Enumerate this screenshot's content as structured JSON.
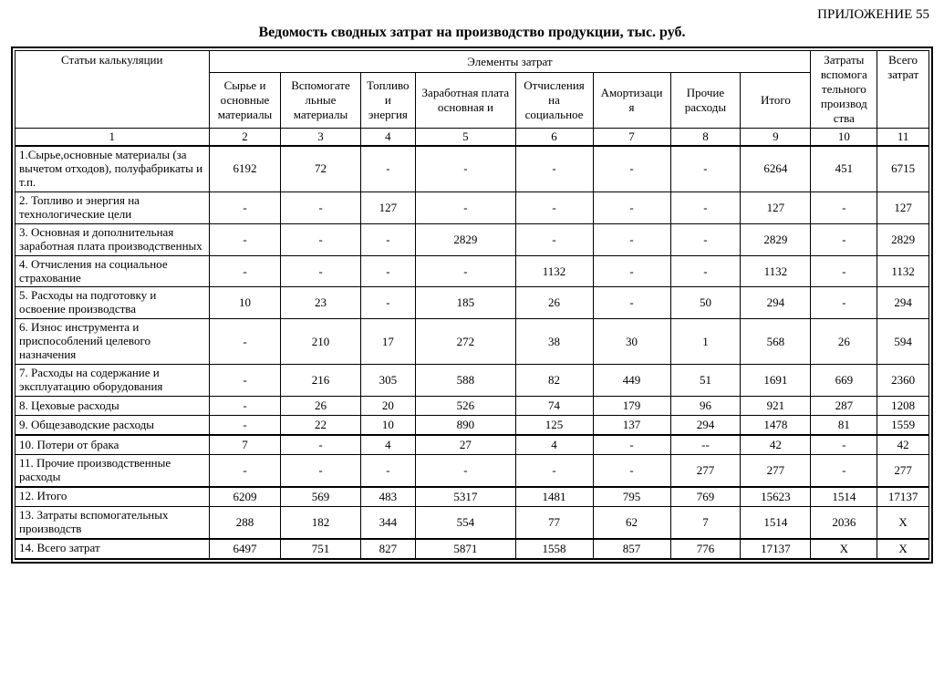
{
  "appendix": "ПРИЛОЖЕНИЕ 55",
  "title": "Ведомость сводных затрат на производство продукции, тыс. руб.",
  "header": {
    "col1": "Статьи калькуляции",
    "group": "Элементы затрат",
    "c2": "Сырье и основные материалы",
    "c3": "Вспомогате льные материалы",
    "c4": "Топливо и энергия",
    "c5": "Заработная плата основная и",
    "c6": "Отчисления на социальное",
    "c7": "Амортизаци я",
    "c8": "Прочие расходы",
    "c9": "Итого",
    "c10": "Затраты вспомога тельного производ ства",
    "c11": "Всего затрат"
  },
  "colnums": [
    "1",
    "2",
    "3",
    "4",
    "5",
    "6",
    "7",
    "8",
    "9",
    "10",
    "11"
  ],
  "rows": [
    {
      "label": "1.Сырье,основные материалы (за вычетом отходов), полуфабрикаты и т.п.",
      "v": [
        "6192",
        "72",
        "-",
        "-",
        "-",
        "-",
        "-",
        "6264",
        "451",
        "6715"
      ]
    },
    {
      "label": "2. Топливо и энергия на технологические цели",
      "v": [
        "-",
        "-",
        "127",
        "-",
        "-",
        "-",
        "-",
        "127",
        "-",
        "127"
      ]
    },
    {
      "label": "3. Основная и дополнительная заработная плата производственных",
      "v": [
        "-",
        "-",
        "-",
        "2829",
        "-",
        "-",
        "-",
        "2829",
        "-",
        "2829"
      ]
    },
    {
      "label": "4. Отчисления на социальное страхование",
      "v": [
        "-",
        "-",
        "-",
        "-",
        "1132",
        "-",
        "-",
        "1132",
        "-",
        "1132"
      ]
    },
    {
      "label": "5. Расходы на подготовку и освоение производства",
      "v": [
        "10",
        "23",
        "-",
        "185",
        "26",
        "-",
        "50",
        "294",
        "-",
        "294"
      ]
    },
    {
      "label": "6. Износ инструмента и приспособлений целевого назначения",
      "v": [
        "-",
        "210",
        "17",
        "272",
        "38",
        "30",
        "1",
        "568",
        "26",
        "594"
      ]
    },
    {
      "label": "7. Расходы на содержание и эксплуатацию оборудования",
      "v": [
        "-",
        "216",
        "305",
        "588",
        "82",
        "449",
        "51",
        "1691",
        "669",
        "2360"
      ]
    },
    {
      "label": "8. Цеховые расходы",
      "v": [
        "-",
        "26",
        "20",
        "526",
        "74",
        "179",
        "96",
        "921",
        "287",
        "1208"
      ]
    },
    {
      "label": "9. Общезаводские расходы",
      "v": [
        "-",
        "22",
        "10",
        "890",
        "125",
        "137",
        "294",
        "1478",
        "81",
        "1559"
      ]
    },
    {
      "label": "10. Потери от брака",
      "v": [
        "7",
        "-",
        "4",
        "27",
        "4",
        "-",
        "--",
        "42",
        "-",
        "42"
      ],
      "thick_top": true
    },
    {
      "label": "11. Прочие производственные расходы",
      "v": [
        "-",
        "-",
        "-",
        "-",
        "-",
        "-",
        "277",
        "277",
        "-",
        "277"
      ]
    },
    {
      "label": "12. Итого",
      "v": [
        "6209",
        "569",
        "483",
        "5317",
        "1481",
        "795",
        "769",
        "15623",
        "1514",
        "17137"
      ],
      "thick_top": true
    },
    {
      "label": "13. Затраты вспомогательных производств",
      "v": [
        "288",
        "182",
        "344",
        "554",
        "77",
        "62",
        "7",
        "1514",
        "2036",
        "Х"
      ]
    },
    {
      "label": "14. Всего затрат",
      "v": [
        "6497",
        "751",
        "827",
        "5871",
        "1558",
        "857",
        "776",
        "17137",
        "Х",
        "Х"
      ],
      "thick_top": true,
      "thick_bottom": true
    }
  ]
}
